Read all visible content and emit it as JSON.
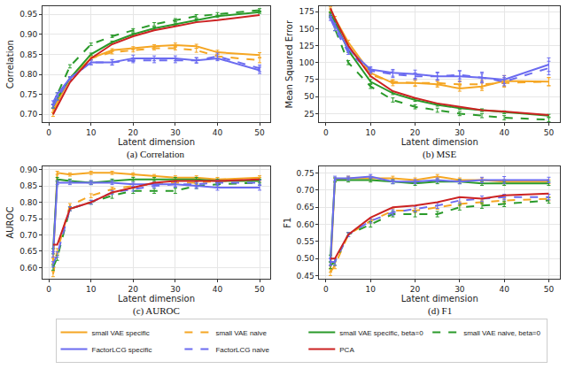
{
  "chart_data": [
    {
      "type": "line",
      "title": "(a) Correlation",
      "x_label": "Latent dimension",
      "y_label": "Correlation",
      "x": [
        1,
        2,
        5,
        10,
        15,
        20,
        25,
        30,
        35,
        40,
        50
      ],
      "xlim": [
        -1.5,
        52.5
      ],
      "xticks": [
        0,
        10,
        20,
        30,
        40,
        50
      ],
      "ylim": [
        0.68,
        0.97
      ],
      "yticks": [
        {
          "value": 0.7,
          "label": "0.70"
        },
        {
          "value": 0.75,
          "label": "0.75"
        },
        {
          "value": 0.8,
          "label": "0.80"
        },
        {
          "value": 0.85,
          "label": "0.85"
        },
        {
          "value": 0.9,
          "label": "0.90"
        },
        {
          "value": 0.95,
          "label": "0.95"
        }
      ],
      "grid": true,
      "series": [
        {
          "name": "small VAE specific",
          "color": "#f5a623",
          "line_style": "solid",
          "values": [
            0.7,
            0.73,
            0.79,
            0.84,
            0.86,
            0.865,
            0.87,
            0.873,
            0.87,
            0.855,
            0.848
          ],
          "errors": [
            0.005,
            0.004,
            0.004,
            0.004,
            0.004,
            0.004,
            0.004,
            0.005,
            0.005,
            0.005,
            0.006
          ]
        },
        {
          "name": "small VAE naive",
          "color": "#f5a623",
          "line_style": "dashed",
          "values": [
            0.71,
            0.74,
            0.79,
            0.84,
            0.855,
            0.86,
            0.865,
            0.865,
            0.86,
            0.845,
            0.835
          ],
          "errors": [
            0.005,
            0.004,
            0.004,
            0.004,
            0.004,
            0.004,
            0.004,
            0.004,
            0.005,
            0.005,
            0.006
          ]
        },
        {
          "name": "small VAE specific, beta=0",
          "color": "#2a9a2a",
          "line_style": "solid",
          "values": [
            0.72,
            0.74,
            0.79,
            0.85,
            0.88,
            0.9,
            0.915,
            0.925,
            0.935,
            0.945,
            0.955
          ],
          "errors": [
            0.004,
            0.004,
            0.003,
            0.003,
            0.003,
            0.003,
            0.003,
            0.003,
            0.003,
            0.003,
            0.003
          ]
        },
        {
          "name": "small VAE naive, beta=0",
          "color": "#2a9a2a",
          "line_style": "dashed",
          "values": [
            0.72,
            0.75,
            0.82,
            0.875,
            0.895,
            0.91,
            0.925,
            0.935,
            0.945,
            0.95,
            0.96
          ],
          "errors": [
            0.004,
            0.004,
            0.004,
            0.003,
            0.003,
            0.004,
            0.004,
            0.004,
            0.004,
            0.004,
            0.004
          ]
        },
        {
          "name": "FactorLCG specific",
          "color": "#6b6bf0",
          "line_style": "solid",
          "values": [
            0.73,
            0.75,
            0.79,
            0.83,
            0.83,
            0.84,
            0.84,
            0.84,
            0.835,
            0.84,
            0.81
          ],
          "errors": [
            0.004,
            0.004,
            0.004,
            0.006,
            0.007,
            0.008,
            0.006,
            0.006,
            0.007,
            0.006,
            0.008
          ]
        },
        {
          "name": "FactorLCG naive",
          "color": "#6b6bf0",
          "line_style": "dashed",
          "values": [
            0.72,
            0.74,
            0.79,
            0.83,
            0.83,
            0.835,
            0.835,
            0.835,
            0.835,
            0.845,
            0.815
          ],
          "errors": [
            0.004,
            0.004,
            0.004,
            0.006,
            0.006,
            0.006,
            0.006,
            0.006,
            0.006,
            0.008,
            0.008
          ]
        },
        {
          "name": "PCA",
          "color": "#cc2222",
          "line_style": "solid",
          "values": [
            0.7,
            0.72,
            0.78,
            0.84,
            0.875,
            0.895,
            0.91,
            0.92,
            0.93,
            0.935,
            0.948
          ]
        }
      ]
    },
    {
      "type": "line",
      "title": "(b) MSE",
      "x_label": "Latent dimension",
      "y_label": "Mean Squared Error",
      "x": [
        1,
        2,
        5,
        10,
        15,
        20,
        25,
        30,
        35,
        40,
        50
      ],
      "xlim": [
        -1.5,
        52.5
      ],
      "xticks": [
        0,
        10,
        20,
        30,
        40,
        50
      ],
      "ylim": [
        12,
        183
      ],
      "yticks": [
        25,
        50,
        75,
        100,
        125,
        150,
        175
      ],
      "grid": true,
      "series": [
        {
          "name": "small VAE specific",
          "color": "#f5a623",
          "line_style": "solid",
          "values": [
            178,
            165,
            130,
            85,
            70,
            70,
            68,
            62,
            65,
            73,
            72
          ],
          "errors": [
            4,
            3,
            3,
            3,
            4,
            5,
            4,
            4,
            6,
            8,
            6
          ]
        },
        {
          "name": "small VAE naive",
          "color": "#f5a623",
          "line_style": "dashed",
          "values": [
            175,
            160,
            125,
            82,
            72,
            70,
            70,
            68,
            68,
            70,
            72
          ],
          "errors": [
            4,
            3,
            3,
            3,
            3,
            4,
            4,
            5,
            6,
            6,
            6
          ]
        },
        {
          "name": "small VAE specific, beta=0",
          "color": "#2a9a2a",
          "line_style": "solid",
          "values": [
            172,
            160,
            118,
            72,
            55,
            45,
            38,
            33,
            30,
            27,
            22
          ],
          "errors": [
            3,
            3,
            3,
            3,
            2,
            2,
            2,
            2,
            2,
            2,
            2
          ]
        },
        {
          "name": "small VAE naive, beta=0",
          "color": "#2a9a2a",
          "line_style": "dashed",
          "values": [
            170,
            150,
            100,
            65,
            45,
            35,
            30,
            25,
            22,
            19,
            16
          ],
          "errors": [
            3,
            3,
            3,
            3,
            3,
            3,
            3,
            3,
            3,
            3,
            3
          ]
        },
        {
          "name": "FactorLCG specific",
          "color": "#6b6bf0",
          "line_style": "solid",
          "values": [
            168,
            155,
            120,
            90,
            85,
            83,
            80,
            80,
            78,
            75,
            97
          ],
          "errors": [
            3,
            3,
            3,
            4,
            5,
            6,
            6,
            8,
            6,
            6,
            10
          ]
        },
        {
          "name": "FactorLCG naive",
          "color": "#6b6bf0",
          "line_style": "dashed",
          "values": [
            165,
            150,
            115,
            88,
            83,
            80,
            80,
            82,
            78,
            72,
            92
          ],
          "errors": [
            3,
            3,
            3,
            4,
            5,
            5,
            5,
            6,
            8,
            6,
            10
          ]
        },
        {
          "name": "PCA",
          "color": "#cc2222",
          "line_style": "solid",
          "values": [
            180,
            165,
            125,
            80,
            58,
            48,
            40,
            35,
            30,
            28,
            23
          ]
        }
      ]
    },
    {
      "type": "line",
      "title": "(c) AUROC",
      "x_label": "Latent dimension",
      "y_label": "AUROC",
      "x": [
        1,
        2,
        5,
        10,
        15,
        20,
        25,
        30,
        35,
        40,
        50
      ],
      "xlim": [
        -1.5,
        52.5
      ],
      "xticks": [
        0,
        10,
        20,
        30,
        40,
        50
      ],
      "ylim": [
        0.565,
        0.91
      ],
      "yticks": [
        {
          "value": 0.6,
          "label": "0.60"
        },
        {
          "value": 0.65,
          "label": "0.65"
        },
        {
          "value": 0.7,
          "label": "0.70"
        },
        {
          "value": 0.75,
          "label": "0.75"
        },
        {
          "value": 0.8,
          "label": "0.80"
        },
        {
          "value": 0.85,
          "label": "0.85"
        },
        {
          "value": 0.9,
          "label": "0.90"
        }
      ],
      "grid": true,
      "legend": "bottom",
      "series": [
        {
          "name": "small VAE specific",
          "color": "#f5a623",
          "line_style": "solid",
          "values": [
            0.62,
            0.89,
            0.885,
            0.89,
            0.89,
            0.885,
            0.88,
            0.875,
            0.875,
            0.87,
            0.875
          ],
          "errors": [
            0.008,
            0.005,
            0.005,
            0.005,
            0.005,
            0.005,
            0.005,
            0.006,
            0.006,
            0.006,
            0.006
          ]
        },
        {
          "name": "small VAE naive",
          "color": "#f5a623",
          "line_style": "dashed",
          "values": [
            0.58,
            0.65,
            0.79,
            0.82,
            0.84,
            0.85,
            0.855,
            0.86,
            0.86,
            0.865,
            0.87
          ],
          "errors": [
            0.008,
            0.008,
            0.006,
            0.006,
            0.006,
            0.006,
            0.006,
            0.006,
            0.006,
            0.006,
            0.006
          ]
        },
        {
          "name": "small VAE specific, beta=0",
          "color": "#2a9a2a",
          "line_style": "solid",
          "values": [
            0.65,
            0.87,
            0.865,
            0.86,
            0.865,
            0.87,
            0.87,
            0.87,
            0.87,
            0.865,
            0.865
          ],
          "errors": [
            0.008,
            0.006,
            0.006,
            0.006,
            0.006,
            0.006,
            0.006,
            0.006,
            0.006,
            0.006,
            0.006
          ]
        },
        {
          "name": "small VAE naive, beta=0",
          "color": "#2a9a2a",
          "line_style": "dashed",
          "values": [
            0.6,
            0.63,
            0.78,
            0.8,
            0.82,
            0.835,
            0.835,
            0.835,
            0.85,
            0.855,
            0.86
          ],
          "errors": [
            0.008,
            0.008,
            0.006,
            0.006,
            0.008,
            0.008,
            0.008,
            0.008,
            0.008,
            0.008,
            0.008
          ]
        },
        {
          "name": "FactorLCG specific",
          "color": "#6b6bf0",
          "line_style": "solid",
          "values": [
            0.64,
            0.86,
            0.86,
            0.86,
            0.86,
            0.855,
            0.855,
            0.855,
            0.85,
            0.845,
            0.845
          ],
          "errors": [
            0.008,
            0.006,
            0.006,
            0.006,
            0.006,
            0.006,
            0.006,
            0.008,
            0.008,
            0.008,
            0.008
          ]
        },
        {
          "name": "FactorLCG naive",
          "color": "#6b6bf0",
          "line_style": "dashed",
          "values": [
            0.61,
            0.64,
            0.78,
            0.8,
            0.83,
            0.84,
            0.85,
            0.855,
            0.855,
            0.86,
            0.86
          ],
          "errors": [
            0.008,
            0.008,
            0.006,
            0.006,
            0.006,
            0.006,
            0.006,
            0.008,
            0.008,
            0.008,
            0.008
          ]
        },
        {
          "name": "PCA",
          "color": "#cc2222",
          "line_style": "solid",
          "values": [
            0.67,
            0.67,
            0.78,
            0.8,
            0.83,
            0.845,
            0.86,
            0.865,
            0.865,
            0.865,
            0.87
          ]
        }
      ]
    },
    {
      "type": "line",
      "title": "(d) F1",
      "x_label": "Latent dimension",
      "y_label": "F1",
      "x": [
        1,
        2,
        5,
        10,
        15,
        20,
        25,
        30,
        35,
        40,
        50
      ],
      "xlim": [
        -1.5,
        52.5
      ],
      "xticks": [
        0,
        10,
        20,
        30,
        40,
        50
      ],
      "ylim": [
        0.44,
        0.77
      ],
      "yticks": [
        {
          "value": 0.45,
          "label": "0.45"
        },
        {
          "value": 0.5,
          "label": "0.50"
        },
        {
          "value": 0.55,
          "label": "0.55"
        },
        {
          "value": 0.6,
          "label": "0.60"
        },
        {
          "value": 0.65,
          "label": "0.65"
        },
        {
          "value": 0.7,
          "label": "0.70"
        },
        {
          "value": 0.75,
          "label": "0.75"
        }
      ],
      "grid": true,
      "series": [
        {
          "name": "small VAE specific",
          "color": "#f5a623",
          "line_style": "solid",
          "values": [
            0.47,
            0.73,
            0.735,
            0.735,
            0.735,
            0.73,
            0.74,
            0.73,
            0.73,
            0.725,
            0.725
          ],
          "errors": [
            0.01,
            0.006,
            0.006,
            0.006,
            0.006,
            0.006,
            0.006,
            0.006,
            0.006,
            0.006,
            0.006
          ]
        },
        {
          "name": "small VAE naive",
          "color": "#f5a623",
          "line_style": "dashed",
          "values": [
            0.46,
            0.48,
            0.57,
            0.61,
            0.64,
            0.64,
            0.65,
            0.66,
            0.665,
            0.67,
            0.675
          ],
          "errors": [
            0.01,
            0.01,
            0.006,
            0.006,
            0.006,
            0.006,
            0.006,
            0.006,
            0.006,
            0.006,
            0.006
          ]
        },
        {
          "name": "small VAE specific, beta=0",
          "color": "#2a9a2a",
          "line_style": "solid",
          "values": [
            0.5,
            0.73,
            0.73,
            0.73,
            0.725,
            0.72,
            0.725,
            0.725,
            0.72,
            0.72,
            0.72
          ],
          "errors": [
            0.01,
            0.006,
            0.006,
            0.006,
            0.006,
            0.006,
            0.006,
            0.006,
            0.006,
            0.006,
            0.006
          ]
        },
        {
          "name": "small VAE naive, beta=0",
          "color": "#2a9a2a",
          "line_style": "dashed",
          "values": [
            0.48,
            0.49,
            0.57,
            0.6,
            0.63,
            0.63,
            0.63,
            0.65,
            0.655,
            0.66,
            0.67
          ],
          "errors": [
            0.01,
            0.01,
            0.006,
            0.008,
            0.008,
            0.008,
            0.008,
            0.008,
            0.008,
            0.008,
            0.008
          ]
        },
        {
          "name": "FactorLCG specific",
          "color": "#6b6bf0",
          "line_style": "solid",
          "values": [
            0.49,
            0.735,
            0.735,
            0.74,
            0.725,
            0.725,
            0.73,
            0.725,
            0.73,
            0.73,
            0.73
          ],
          "errors": [
            0.01,
            0.006,
            0.006,
            0.006,
            0.006,
            0.006,
            0.006,
            0.006,
            0.008,
            0.01,
            0.008
          ]
        },
        {
          "name": "FactorLCG naive",
          "color": "#6b6bf0",
          "line_style": "dashed",
          "values": [
            0.49,
            0.49,
            0.57,
            0.61,
            0.635,
            0.645,
            0.655,
            0.67,
            0.675,
            0.68,
            0.68
          ],
          "errors": [
            0.01,
            0.01,
            0.006,
            0.006,
            0.008,
            0.008,
            0.008,
            0.008,
            0.008,
            0.008,
            0.008
          ]
        },
        {
          "name": "PCA",
          "color": "#cc2222",
          "line_style": "solid",
          "values": [
            0.5,
            0.5,
            0.57,
            0.62,
            0.65,
            0.655,
            0.665,
            0.68,
            0.675,
            0.685,
            0.69
          ]
        }
      ]
    }
  ]
}
